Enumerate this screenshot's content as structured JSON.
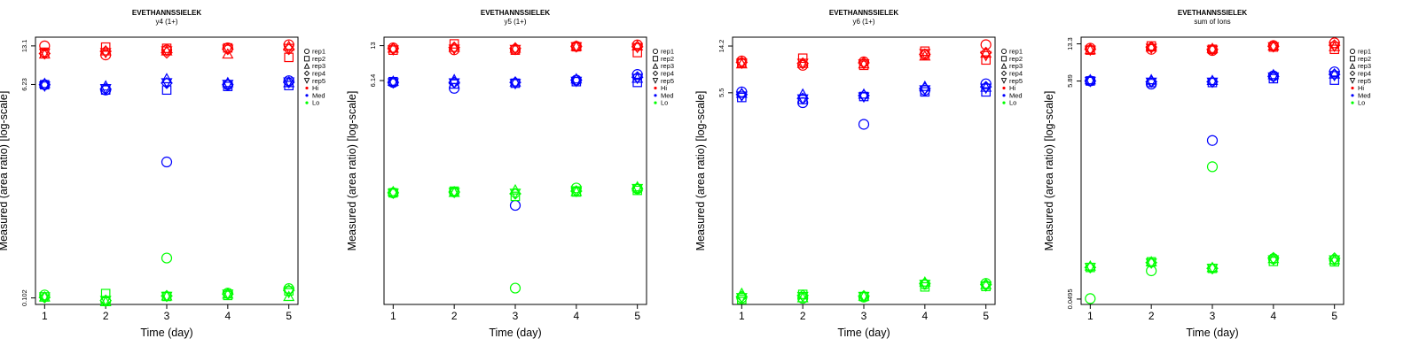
{
  "colors": {
    "Hi": "#ff0000",
    "Med": "#0000ff",
    "Lo": "#00ff00",
    "axis": "#000000"
  },
  "legend": {
    "placement": "right-outside",
    "entries": [
      {
        "label": "rep1",
        "symbol": "circle"
      },
      {
        "label": "rep2",
        "symbol": "square"
      },
      {
        "label": "rep3",
        "symbol": "triangle-up"
      },
      {
        "label": "rep4",
        "symbol": "diamond"
      },
      {
        "label": "rep5",
        "symbol": "triangle-down"
      },
      {
        "label": "Hi",
        "symbol": "dot",
        "color": "#ff0000"
      },
      {
        "label": "Med",
        "symbol": "dot",
        "color": "#0000ff"
      },
      {
        "label": "Lo",
        "symbol": "dot",
        "color": "#00ff00"
      }
    ]
  },
  "chart_data": [
    {
      "type": "scatter",
      "title": "EVETHANNSSIELEK",
      "subtitle": "y4 (1+)",
      "xlabel": "Time (day)",
      "ylabel": "Measured (area ratio) [log-scale]",
      "x_ticks": [
        "1",
        "2",
        "3",
        "4",
        "5"
      ],
      "y_ticks": [
        "0.102",
        "6.23",
        "13.1"
      ],
      "y_scale": "log",
      "ylim": [
        0.09,
        15.5
      ],
      "grid": false,
      "x": [
        1,
        2,
        3,
        4,
        5
      ],
      "series": [
        {
          "name": "Hi",
          "reps": [
            [
              13.1,
              11.0,
              12.1,
              12.6,
              13.4
            ],
            [
              11.6,
              12.8,
              12.5,
              12.6,
              10.5
            ],
            [
              11.1,
              11.8,
              11.8,
              11.1,
              12.9
            ],
            [
              11.3,
              11.8,
              11.5,
              12.3,
              12.3
            ],
            [
              11.5,
              11.6,
              12.0,
              12.4,
              12.6
            ]
          ]
        },
        {
          "name": "Med",
          "reps": [
            [
              6.2,
              5.6,
              1.4,
              6.2,
              6.7
            ],
            [
              6.2,
              5.6,
              5.6,
              6.0,
              6.1
            ],
            [
              6.3,
              6.0,
              6.9,
              6.4,
              6.4
            ],
            [
              6.2,
              5.7,
              6.4,
              6.2,
              6.5
            ],
            [
              6.1,
              5.8,
              6.5,
              6.3,
              6.6
            ]
          ]
        },
        {
          "name": "Lo",
          "reps": [
            [
              0.108,
              0.096,
              0.22,
              0.112,
              0.122
            ],
            [
              0.104,
              0.111,
              0.105,
              0.107,
              0.117
            ],
            [
              0.103,
              0.094,
              0.105,
              0.109,
              0.104
            ],
            [
              0.103,
              0.097,
              0.106,
              0.11,
              0.118
            ],
            [
              0.105,
              0.098,
              0.106,
              0.111,
              0.114
            ]
          ]
        }
      ]
    },
    {
      "type": "scatter",
      "title": "EVETHANNSSIELEK",
      "subtitle": "y5 (1+)",
      "xlabel": "Time (day)",
      "ylabel": "Measured (area ratio) [log-scale]",
      "x_ticks": [
        "1",
        "2",
        "3",
        "4",
        "5"
      ],
      "y_ticks": [
        "6.14",
        "13"
      ],
      "y_scale": "log",
      "ylim": [
        0.05,
        15.6
      ],
      "grid": false,
      "x": [
        1,
        2,
        3,
        4,
        5
      ],
      "series": [
        {
          "name": "Hi",
          "reps": [
            [
              12.4,
              11.9,
              12.0,
              12.8,
              13.2
            ],
            [
              11.8,
              13.5,
              11.8,
              12.7,
              11.2
            ],
            [
              12.2,
              12.4,
              12.2,
              12.7,
              12.8
            ],
            [
              12.2,
              12.5,
              12.3,
              12.8,
              12.7
            ],
            [
              12.0,
              12.2,
              12.1,
              12.8,
              12.6
            ]
          ]
        },
        {
          "name": "Med",
          "reps": [
            [
              5.9,
              5.2,
              0.42,
              6.2,
              7.0
            ],
            [
              6.0,
              5.7,
              5.8,
              6.0,
              5.9
            ],
            [
              6.0,
              6.2,
              5.9,
              6.3,
              6.4
            ],
            [
              5.9,
              5.9,
              5.9,
              6.2,
              6.6
            ],
            [
              5.9,
              5.9,
              5.8,
              6.1,
              6.5
            ]
          ]
        },
        {
          "name": "Lo",
          "reps": [
            [
              0.55,
              0.56,
              0.071,
              0.61,
              0.6
            ],
            [
              0.55,
              0.57,
              0.51,
              0.56,
              0.58
            ],
            [
              0.56,
              0.55,
              0.58,
              0.56,
              0.62
            ],
            [
              0.55,
              0.56,
              0.54,
              0.57,
              0.6
            ],
            [
              0.55,
              0.56,
              0.55,
              0.58,
              0.61
            ]
          ]
        }
      ]
    },
    {
      "type": "scatter",
      "title": "EVETHANNSSIELEK",
      "subtitle": "y6 (1+)",
      "xlabel": "Time (day)",
      "ylabel": "Measured (area ratio) [log-scale]",
      "x_ticks": [
        "1",
        "2",
        "3",
        "4",
        "5"
      ],
      "y_ticks": [
        "5.5",
        "14.2"
      ],
      "y_scale": "log",
      "ylim": [
        0.075,
        17.0
      ],
      "grid": false,
      "x": [
        1,
        2,
        3,
        4,
        5
      ],
      "series": [
        {
          "name": "Hi",
          "reps": [
            [
              10.5,
              9.6,
              10.3,
              11.9,
              14.6
            ],
            [
              10.1,
              11.1,
              9.6,
              12.8,
              10.7
            ],
            [
              9.8,
              9.9,
              9.8,
              11.5,
              12.2
            ],
            [
              10.2,
              10.0,
              10.1,
              12.0,
              12.4
            ],
            [
              10.1,
              10.1,
              10.0,
              12.3,
              11.8
            ]
          ]
        },
        {
          "name": "Med",
          "reps": [
            [
              5.6,
              4.5,
              2.9,
              5.8,
              6.6
            ],
            [
              5.0,
              4.8,
              5.1,
              5.6,
              5.6
            ],
            [
              5.4,
              5.3,
              5.3,
              6.2,
              6.1
            ],
            [
              5.3,
              4.9,
              5.2,
              6.0,
              6.2
            ],
            [
              5.2,
              4.9,
              5.1,
              5.9,
              6.1
            ]
          ]
        },
        {
          "name": "Lo",
          "reps": [
            [
              0.086,
              0.085,
              0.087,
              0.113,
              0.115
            ],
            [
              0.083,
              0.092,
              0.088,
              0.107,
              0.108
            ],
            [
              0.093,
              0.085,
              0.088,
              0.117,
              0.111
            ],
            [
              0.088,
              0.09,
              0.089,
              0.115,
              0.112
            ],
            [
              0.087,
              0.089,
              0.089,
              0.114,
              0.11
            ]
          ]
        }
      ]
    },
    {
      "type": "scatter",
      "title": "EVETHANNSSIELEK",
      "subtitle": "sum of Ions",
      "xlabel": "Time (day)",
      "ylabel": "Measured (area ratio) [log-scale]",
      "x_ticks": [
        "1",
        "2",
        "3",
        "4",
        "5"
      ],
      "y_ticks": [
        "0.0495",
        "5.89",
        "13.3"
      ],
      "y_scale": "log",
      "ylim": [
        0.044,
        15.4
      ],
      "grid": false,
      "x": [
        1,
        2,
        3,
        4,
        5
      ],
      "series": [
        {
          "name": "Hi",
          "reps": [
            [
              12.1,
              11.8,
              11.5,
              12.8,
              13.6
            ],
            [
              11.6,
              12.7,
              11.8,
              12.4,
              11.8
            ],
            [
              11.6,
              12.3,
              11.9,
              12.6,
              12.4
            ],
            [
              11.8,
              12.4,
              11.8,
              12.6,
              12.9
            ],
            [
              11.7,
              12.2,
              11.7,
              12.6,
              12.7
            ]
          ]
        },
        {
          "name": "Med",
          "reps": [
            [
              5.9,
              5.5,
              1.6,
              6.6,
              7.2
            ],
            [
              5.9,
              5.7,
              5.7,
              6.2,
              6.0
            ],
            [
              6.0,
              6.0,
              5.9,
              6.7,
              6.8
            ],
            [
              5.9,
              5.8,
              5.8,
              6.5,
              6.8
            ],
            [
              5.9,
              5.8,
              5.8,
              6.5,
              6.7
            ]
          ]
        },
        {
          "name": "Lo",
          "reps": [
            [
              0.05,
              0.092,
              0.9,
              0.12,
              0.117
            ],
            [
              0.099,
              0.112,
              0.097,
              0.113,
              0.112
            ],
            [
              0.101,
              0.111,
              0.098,
              0.119,
              0.116
            ],
            [
              0.099,
              0.11,
              0.097,
              0.122,
              0.121
            ],
            [
              0.1,
              0.11,
              0.098,
              0.118,
              0.118
            ]
          ]
        }
      ]
    }
  ]
}
